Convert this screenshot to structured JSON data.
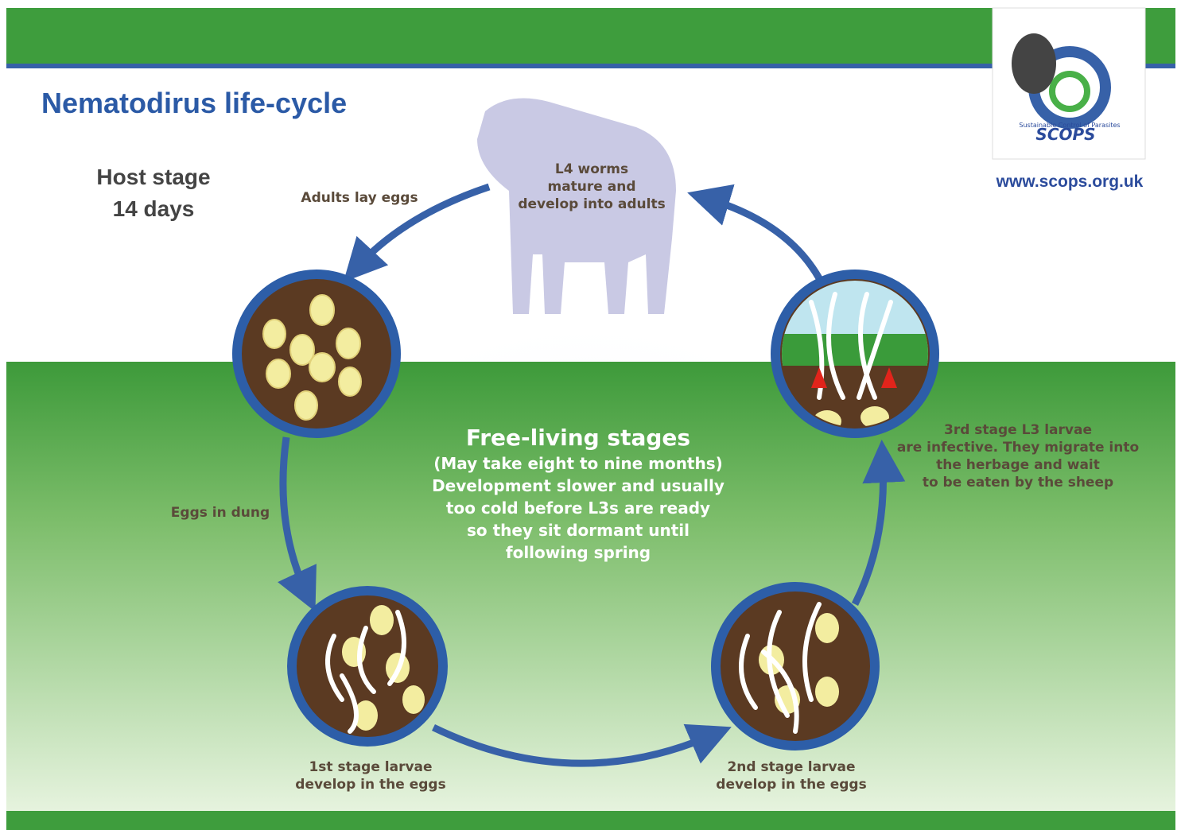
{
  "header": {
    "title": "Nematodirus life-cycle",
    "website": "www.scops.org.uk",
    "logo": {
      "name": "SCOPS",
      "tagline": "Sustainable Control of Parasites"
    }
  },
  "host_stage": {
    "label": "Host stage",
    "duration": "14 days"
  },
  "free_living": {
    "title": "Free-living stages",
    "lines": [
      "(May take eight to nine months)",
      "Development slower and usually",
      "too cold before L3s are ready",
      "so they sit dormant until",
      "following spring"
    ]
  },
  "nodes": [
    {
      "label": [
        "L4 worms",
        "mature and",
        "develop into adults"
      ]
    },
    {
      "label": [
        "Adults lay eggs"
      ]
    },
    {
      "label": [
        "Eggs in dung"
      ]
    },
    {
      "label": [
        "1st stage larvae",
        "develop in the eggs"
      ]
    },
    {
      "label": [
        "2nd stage larvae",
        "develop in the eggs"
      ]
    },
    {
      "label": [
        "3rd stage L3 larvae",
        "are infective. They migrate into",
        "the herbage and wait",
        "to be eaten by the sheep"
      ]
    }
  ]
}
